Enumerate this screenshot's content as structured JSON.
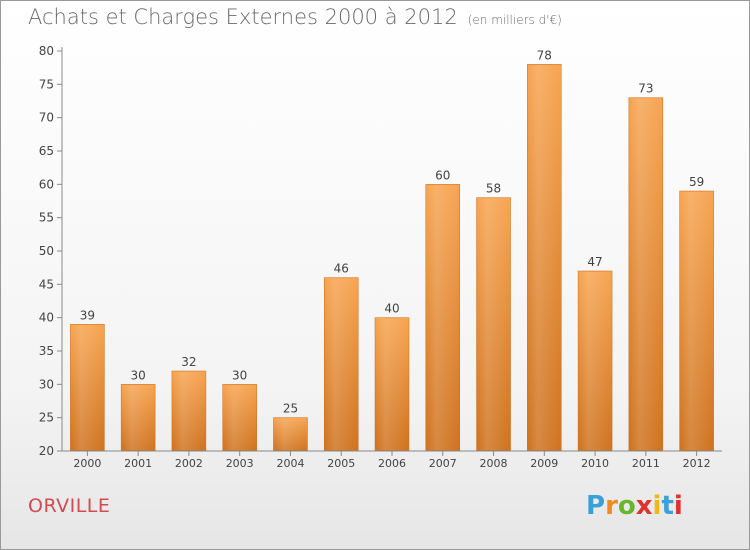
{
  "title": "Achats et Charges Externes 2000 à 2012",
  "unit": "(en milliers d'€)",
  "commune": "ORVILLE",
  "logo": {
    "text": "Proxiti",
    "letter_colors": [
      "#3aa0d8",
      "#f28a1e",
      "#69b52c",
      "#e0322e",
      "#f0b81a",
      "#3aa0d8",
      "#e0322e"
    ]
  },
  "colors": {
    "bar_top": "#f7a552",
    "bar_bottom": "#cf7320",
    "axis": "#8a8a8a",
    "grid": "#d8d8d8",
    "text": "#444444"
  },
  "chart_data": {
    "type": "bar",
    "categories": [
      "2000",
      "2001",
      "2002",
      "2003",
      "2004",
      "2005",
      "2006",
      "2007",
      "2008",
      "2009",
      "2010",
      "2011",
      "2012"
    ],
    "values": [
      39,
      30,
      32,
      30,
      25,
      46,
      40,
      60,
      58,
      78,
      47,
      73,
      59
    ],
    "ylim": [
      20,
      80
    ],
    "yticks": [
      20,
      25,
      30,
      35,
      40,
      45,
      50,
      55,
      60,
      65,
      70,
      75,
      80
    ],
    "grid": false
  }
}
